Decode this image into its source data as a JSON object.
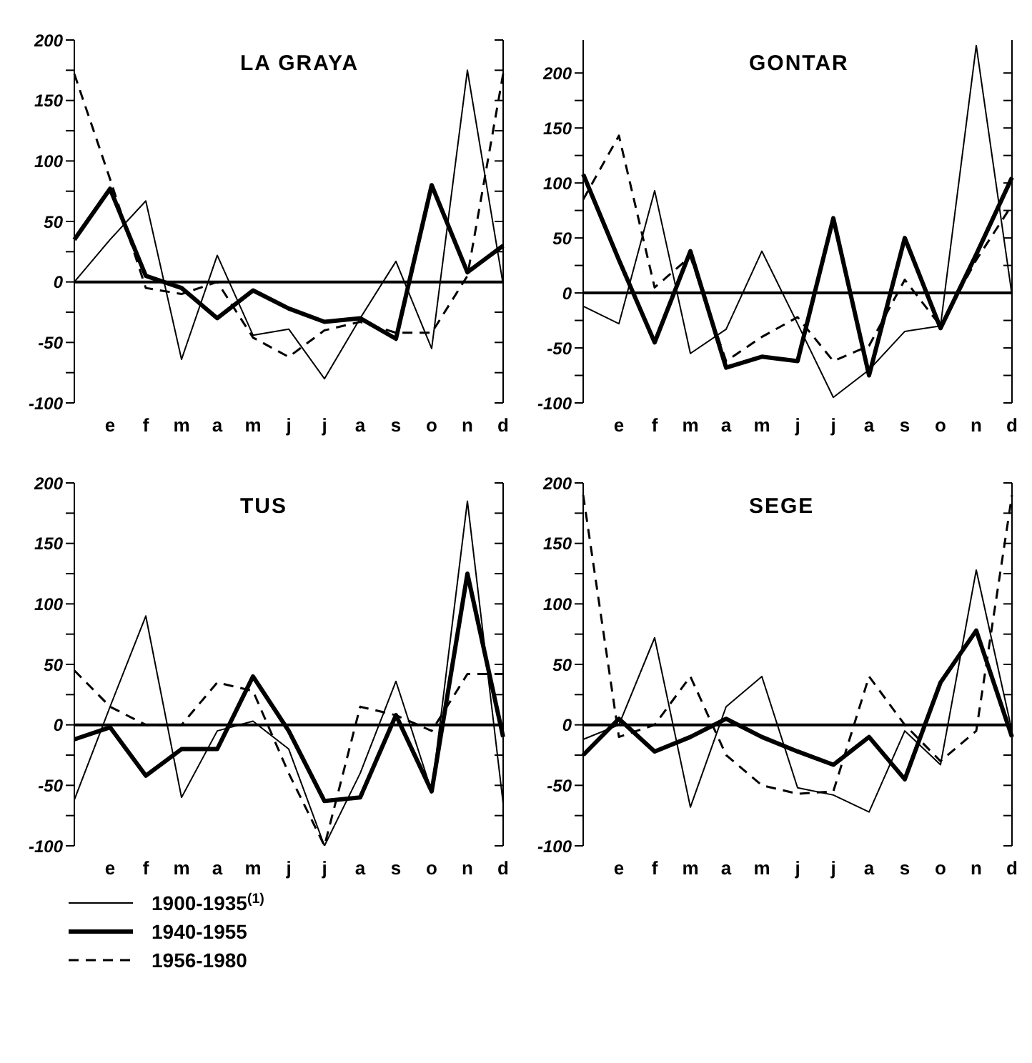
{
  "chart_data": [
    {
      "type": "line",
      "title": "LA GRAYA",
      "categories": [
        null,
        "e",
        "f",
        "m",
        "a",
        "m",
        "j",
        "j",
        "a",
        "s",
        "o",
        "n",
        "d"
      ],
      "ylim": [
        -100,
        200
      ],
      "yticks": [
        -100,
        {
          "value": -75,
          "label": null
        },
        -50,
        {
          "value": -25,
          "label": null
        },
        0,
        {
          "value": 25,
          "label": null
        },
        50,
        {
          "value": 75,
          "label": null
        },
        100,
        {
          "value": 125,
          "label": null
        },
        150,
        {
          "value": 175,
          "label": null
        },
        200
      ],
      "ref_lines": [
        {
          "axis": "y",
          "value": 0,
          "color": "#000000"
        }
      ],
      "series": [
        {
          "color": "#000000",
          "line_style": "solid",
          "values": [
            0,
            35,
            67,
            -64,
            22,
            -44,
            -39,
            -80,
            -30,
            17,
            -55,
            175,
            -2
          ]
        },
        {
          "color": "#000000",
          "line_style": "solid",
          "values": [
            35,
            77,
            5,
            -5,
            -30,
            -7,
            -22,
            -33,
            -30,
            -47,
            80,
            8,
            30
          ]
        },
        {
          "color": "#000000",
          "line_style": "dashed",
          "values": [
            172,
            85,
            -5,
            -10,
            0,
            -46,
            -62,
            -40,
            -33,
            -42,
            -42,
            5,
            172
          ]
        }
      ]
    },
    {
      "type": "line",
      "title": "GONTAR",
      "categories": [
        null,
        "e",
        "f",
        "m",
        "a",
        "m",
        "j",
        "j",
        "a",
        "s",
        "o",
        "n",
        "d"
      ],
      "ylim": [
        -100,
        230
      ],
      "yticks": [
        -100,
        {
          "value": -75,
          "label": null
        },
        -50,
        {
          "value": -25,
          "label": null
        },
        0,
        {
          "value": 25,
          "label": null
        },
        50,
        {
          "value": 75,
          "label": null
        },
        100,
        {
          "value": 125,
          "label": null
        },
        150,
        {
          "value": 175,
          "label": null
        },
        200
      ],
      "ref_lines": [
        {
          "axis": "y",
          "value": 0,
          "color": "#000000"
        }
      ],
      "series": [
        {
          "color": "#000000",
          "line_style": "solid",
          "values": [
            -12,
            -28,
            93,
            -55,
            -33,
            38,
            -28,
            -95,
            -70,
            -35,
            -30,
            225,
            -2
          ]
        },
        {
          "color": "#000000",
          "line_style": "solid",
          "values": [
            108,
            30,
            -45,
            38,
            -68,
            -58,
            -62,
            68,
            -75,
            50,
            -32,
            35,
            105
          ]
        },
        {
          "color": "#000000",
          "line_style": "dashed",
          "values": [
            85,
            143,
            5,
            33,
            -62,
            -40,
            -22,
            -62,
            -48,
            12,
            -30,
            30,
            80
          ]
        }
      ]
    },
    {
      "type": "line",
      "title": "TUS",
      "categories": [
        null,
        "e",
        "f",
        "m",
        "a",
        "m",
        "j",
        "j",
        "a",
        "s",
        "o",
        "n",
        "d"
      ],
      "ylim": [
        -100,
        200
      ],
      "yticks": [
        -100,
        {
          "value": -75,
          "label": null
        },
        -50,
        {
          "value": -25,
          "label": null
        },
        0,
        {
          "value": 25,
          "label": null
        },
        50,
        {
          "value": 75,
          "label": null
        },
        100,
        {
          "value": 125,
          "label": null
        },
        150,
        {
          "value": 175,
          "label": null
        },
        200
      ],
      "ref_lines": [
        {
          "axis": "y",
          "value": 0,
          "color": "#000000"
        }
      ],
      "legend": "bottom left",
      "series": [
        {
          "name": "1900-1935$^{(1)}$",
          "color": "#000000",
          "line_style": "solid",
          "values": [
            -62,
            15,
            90,
            -60,
            -5,
            3,
            -20,
            -100,
            -40,
            36,
            -55,
            185,
            -65
          ]
        },
        {
          "name": "1940-1955",
          "color": "#000000",
          "line_style": "solid",
          "values": [
            -12,
            -2,
            -42,
            -20,
            -20,
            40,
            -5,
            -63,
            -60,
            8,
            -55,
            125,
            -10
          ]
        },
        {
          "name": "1956-1980",
          "color": "#000000",
          "line_style": "dashed",
          "values": [
            45,
            15,
            0,
            0,
            35,
            28,
            -40,
            -100,
            15,
            8,
            -5,
            42,
            42
          ]
        }
      ]
    },
    {
      "type": "line",
      "title": "SEGE",
      "categories": [
        null,
        "e",
        "f",
        "m",
        "a",
        "m",
        "j",
        "j",
        "a",
        "s",
        "o",
        "n",
        "d"
      ],
      "ylim": [
        -100,
        200
      ],
      "yticks": [
        -100,
        {
          "value": -75,
          "label": null
        },
        -50,
        {
          "value": -25,
          "label": null
        },
        0,
        {
          "value": 25,
          "label": null
        },
        50,
        {
          "value": 75,
          "label": null
        },
        100,
        {
          "value": 125,
          "label": null
        },
        150,
        {
          "value": 175,
          "label": null
        },
        200
      ],
      "ref_lines": [
        {
          "axis": "y",
          "value": 0,
          "color": "#000000"
        }
      ],
      "series": [
        {
          "color": "#000000",
          "line_style": "solid",
          "values": [
            -12,
            0,
            72,
            -68,
            15,
            40,
            -52,
            -58,
            -72,
            -5,
            -33,
            128,
            -5
          ]
        },
        {
          "color": "#000000",
          "line_style": "solid",
          "values": [
            -25,
            5,
            -22,
            -10,
            5,
            -10,
            -22,
            -33,
            -10,
            -45,
            35,
            78,
            -10
          ]
        },
        {
          "color": "#000000",
          "line_style": "dashed",
          "values": [
            190,
            -10,
            0,
            40,
            -25,
            -50,
            -57,
            -55,
            40,
            0,
            -30,
            -5,
            190
          ]
        }
      ]
    }
  ]
}
